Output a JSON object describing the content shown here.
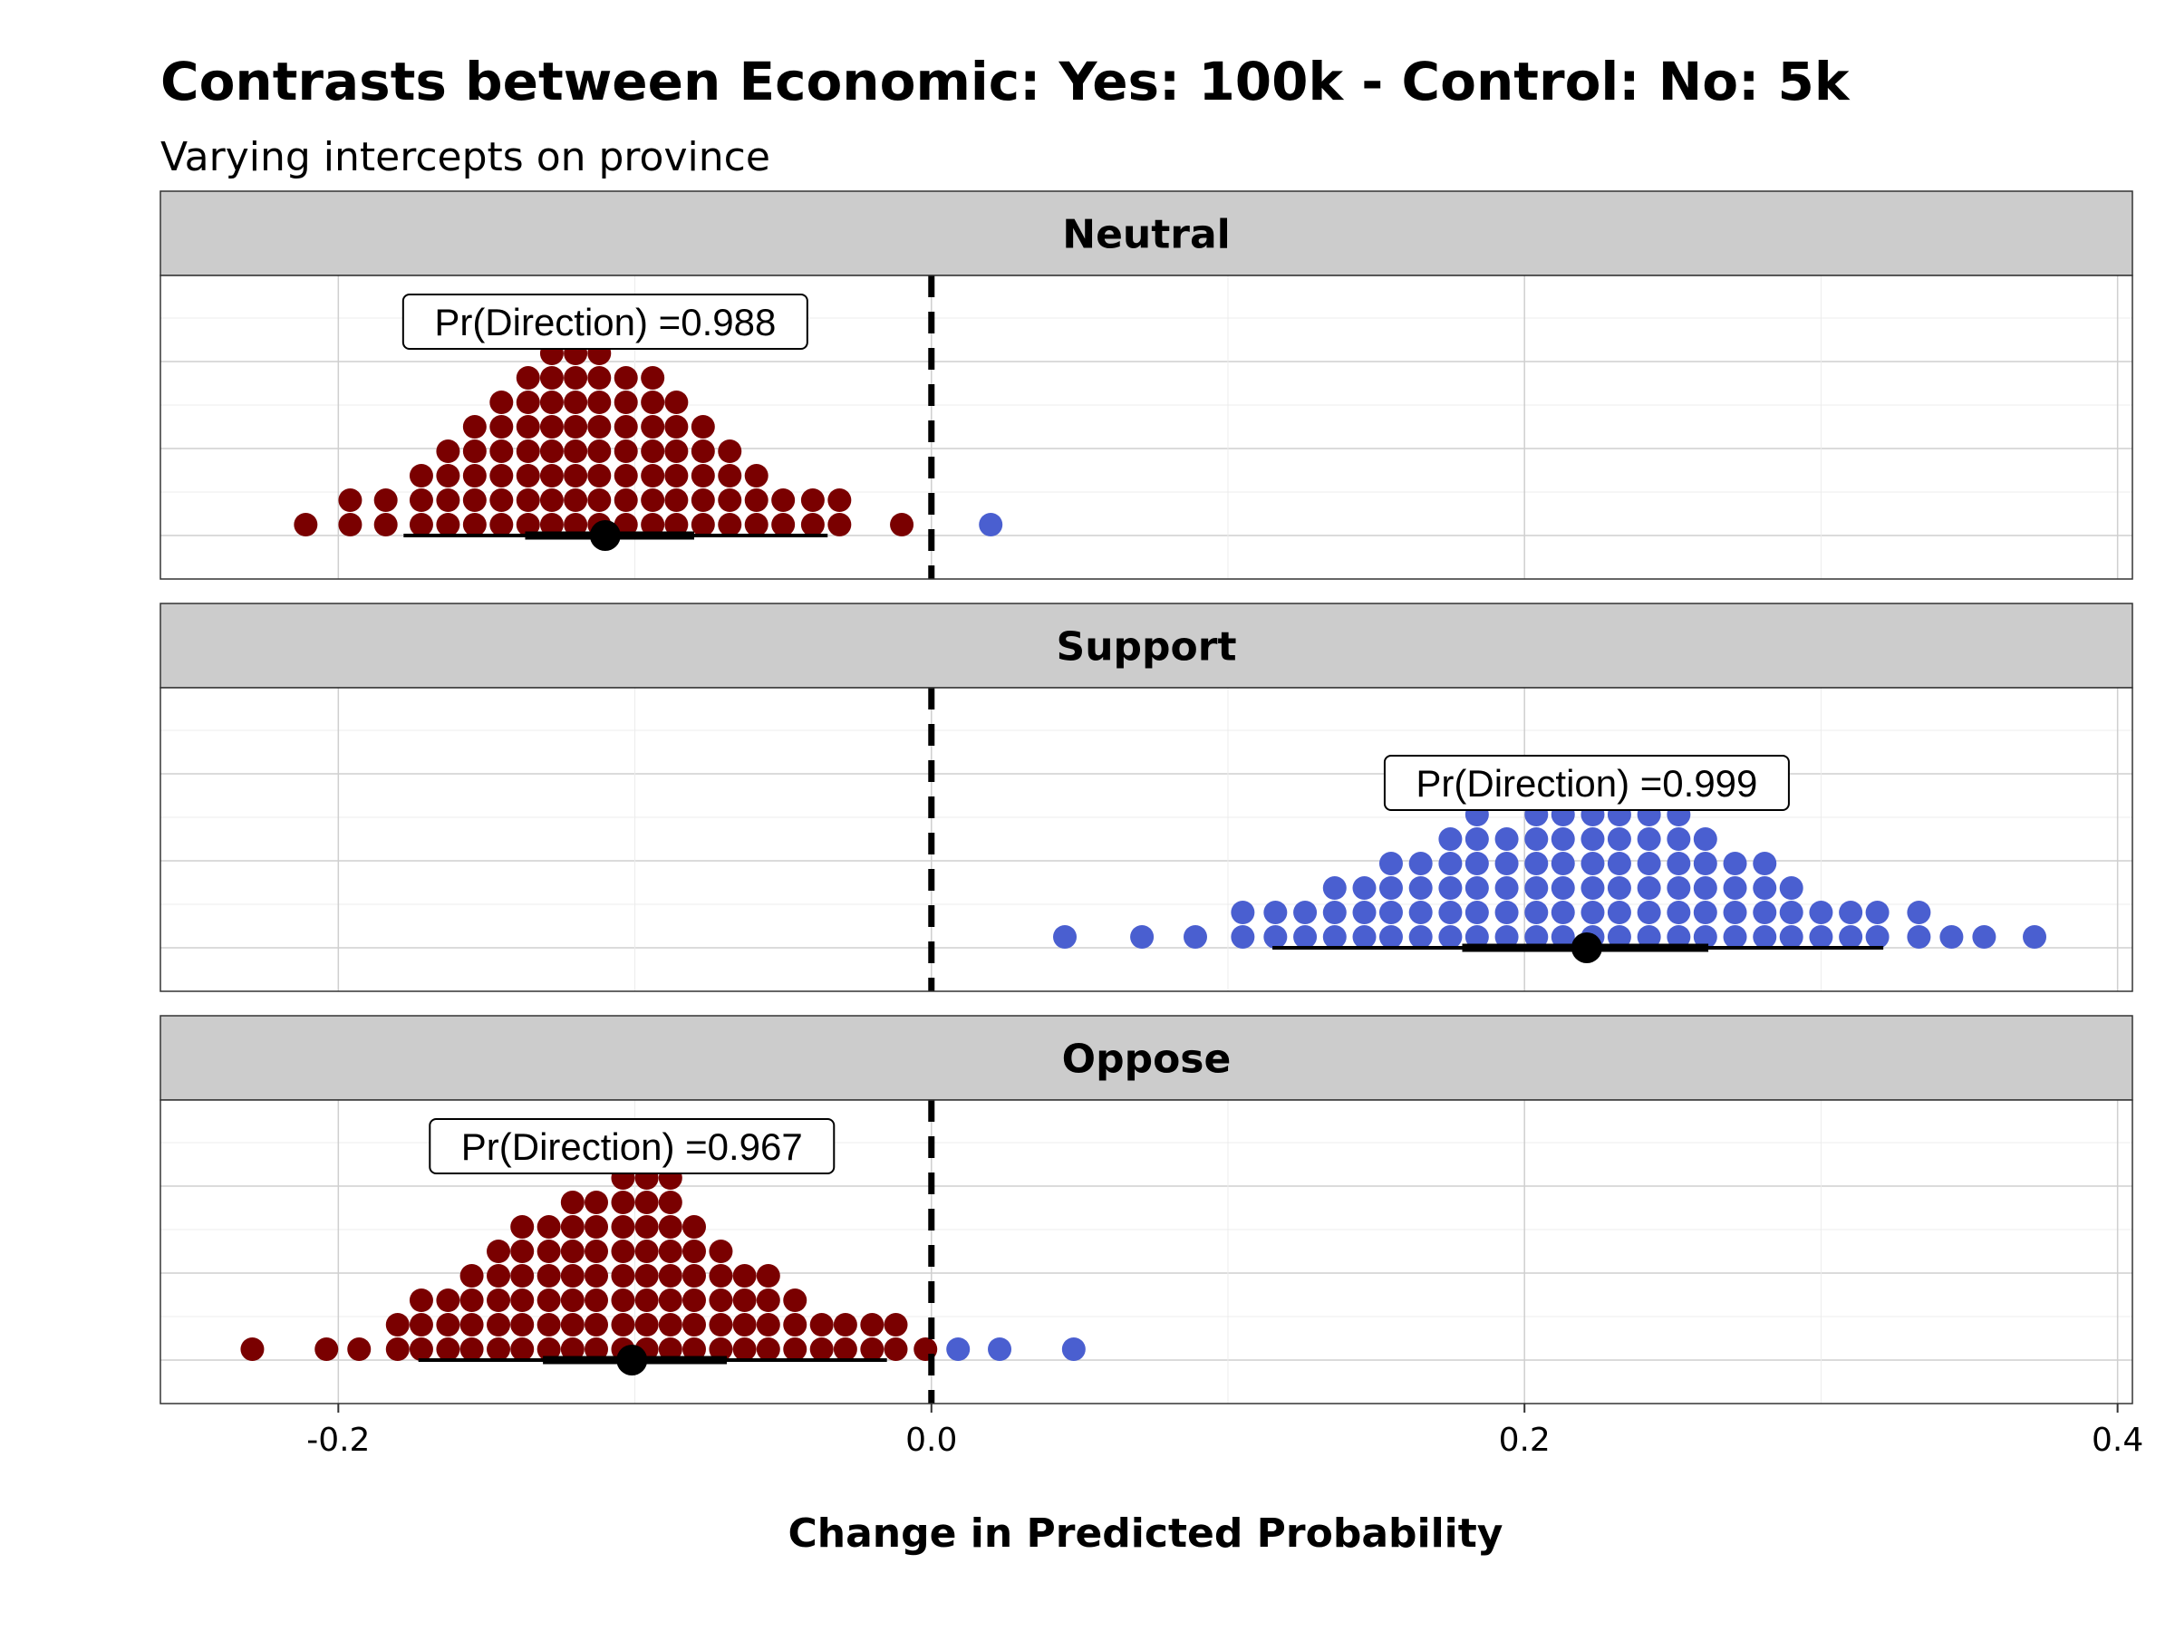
{
  "chart_data": {
    "type": "dotplot",
    "title": "Contrasts between Economic: Yes: 100k - Control: No: 5k",
    "subtitle": "Varying intercepts on province",
    "xlabel": "Change in Predicted Probability",
    "xlim": [
      -0.26,
      0.405
    ],
    "x_ticks": [
      -0.2,
      0.0,
      0.2,
      0.4
    ],
    "x_tick_labels": [
      "-0.2",
      "0.0",
      "0.2",
      "0.4"
    ],
    "reference_line": 0,
    "grid": true,
    "colors": {
      "negative": "#7a0000",
      "positive": "#4a5fd0",
      "strip_fill": "#cccccc",
      "grid": "#d6d6d6"
    },
    "panels": [
      {
        "name": "Neutral",
        "label": "Pr(Direction) =0.988",
        "point": -0.11,
        "interval_66": [
          -0.137,
          -0.08
        ],
        "interval_95": [
          -0.178,
          -0.035
        ],
        "columns": [
          {
            "x": -0.211,
            "n": 1
          },
          {
            "x": -0.196,
            "n": 2
          },
          {
            "x": -0.184,
            "n": 2
          },
          {
            "x": -0.172,
            "n": 3
          },
          {
            "x": -0.163,
            "n": 4
          },
          {
            "x": -0.154,
            "n": 5
          },
          {
            "x": -0.145,
            "n": 6
          },
          {
            "x": -0.136,
            "n": 7
          },
          {
            "x": -0.128,
            "n": 8
          },
          {
            "x": -0.12,
            "n": 8
          },
          {
            "x": -0.112,
            "n": 8
          },
          {
            "x": -0.103,
            "n": 7
          },
          {
            "x": -0.094,
            "n": 7
          },
          {
            "x": -0.086,
            "n": 6
          },
          {
            "x": -0.077,
            "n": 5
          },
          {
            "x": -0.068,
            "n": 4
          },
          {
            "x": -0.059,
            "n": 3
          },
          {
            "x": -0.05,
            "n": 2
          },
          {
            "x": -0.04,
            "n": 2
          },
          {
            "x": -0.031,
            "n": 2
          },
          {
            "x": -0.01,
            "n": 1
          },
          {
            "x": 0.02,
            "n": 1
          }
        ]
      },
      {
        "name": "Support",
        "label": "Pr(Direction) =0.999",
        "point": 0.221,
        "interval_66": [
          0.179,
          0.262
        ],
        "interval_95": [
          0.115,
          0.321
        ],
        "columns": [
          {
            "x": 0.045,
            "n": 1
          },
          {
            "x": 0.071,
            "n": 1
          },
          {
            "x": 0.089,
            "n": 1
          },
          {
            "x": 0.105,
            "n": 2
          },
          {
            "x": 0.116,
            "n": 2
          },
          {
            "x": 0.126,
            "n": 2
          },
          {
            "x": 0.136,
            "n": 3
          },
          {
            "x": 0.146,
            "n": 3
          },
          {
            "x": 0.155,
            "n": 4
          },
          {
            "x": 0.165,
            "n": 4
          },
          {
            "x": 0.175,
            "n": 5
          },
          {
            "x": 0.184,
            "n": 6
          },
          {
            "x": 0.194,
            "n": 5
          },
          {
            "x": 0.204,
            "n": 6
          },
          {
            "x": 0.213,
            "n": 6
          },
          {
            "x": 0.223,
            "n": 6
          },
          {
            "x": 0.232,
            "n": 6
          },
          {
            "x": 0.242,
            "n": 6
          },
          {
            "x": 0.252,
            "n": 6
          },
          {
            "x": 0.261,
            "n": 5
          },
          {
            "x": 0.271,
            "n": 4
          },
          {
            "x": 0.281,
            "n": 4
          },
          {
            "x": 0.29,
            "n": 3
          },
          {
            "x": 0.3,
            "n": 2
          },
          {
            "x": 0.31,
            "n": 2
          },
          {
            "x": 0.319,
            "n": 2
          },
          {
            "x": 0.333,
            "n": 2
          },
          {
            "x": 0.344,
            "n": 1
          },
          {
            "x": 0.355,
            "n": 1
          },
          {
            "x": 0.372,
            "n": 1
          }
        ]
      },
      {
        "name": "Oppose",
        "label": "Pr(Direction) =0.967",
        "point": -0.101,
        "interval_66": [
          -0.131,
          -0.069
        ],
        "interval_95": [
          -0.173,
          -0.015
        ],
        "columns": [
          {
            "x": -0.229,
            "n": 1
          },
          {
            "x": -0.204,
            "n": 1
          },
          {
            "x": -0.193,
            "n": 1
          },
          {
            "x": -0.18,
            "n": 2
          },
          {
            "x": -0.172,
            "n": 3
          },
          {
            "x": -0.163,
            "n": 3
          },
          {
            "x": -0.155,
            "n": 4
          },
          {
            "x": -0.146,
            "n": 5
          },
          {
            "x": -0.138,
            "n": 6
          },
          {
            "x": -0.129,
            "n": 6
          },
          {
            "x": -0.121,
            "n": 7
          },
          {
            "x": -0.113,
            "n": 7
          },
          {
            "x": -0.104,
            "n": 8
          },
          {
            "x": -0.096,
            "n": 8
          },
          {
            "x": -0.088,
            "n": 8
          },
          {
            "x": -0.08,
            "n": 6
          },
          {
            "x": -0.071,
            "n": 5
          },
          {
            "x": -0.063,
            "n": 4
          },
          {
            "x": -0.055,
            "n": 4
          },
          {
            "x": -0.046,
            "n": 3
          },
          {
            "x": -0.037,
            "n": 2
          },
          {
            "x": -0.029,
            "n": 2
          },
          {
            "x": -0.02,
            "n": 2
          },
          {
            "x": -0.012,
            "n": 2
          },
          {
            "x": -0.002,
            "n": 1
          },
          {
            "x": 0.009,
            "n": 1
          },
          {
            "x": 0.023,
            "n": 1
          },
          {
            "x": 0.048,
            "n": 1
          }
        ]
      }
    ]
  }
}
